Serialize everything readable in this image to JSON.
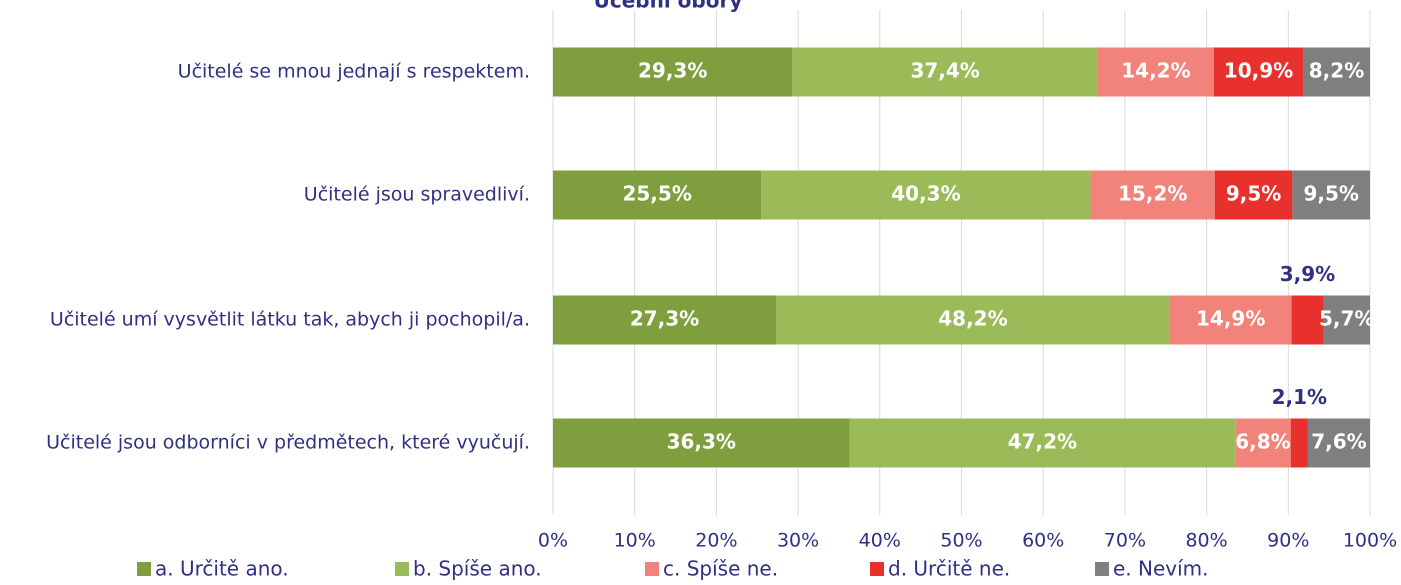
{
  "chart_data": {
    "type": "stacked-bar-horizontal",
    "title": "Učební obory",
    "categories": [
      "Učitelé se mnou jednají s respektem.",
      "Učitelé jsou spravedliví.",
      "Učitelé umí vysvětlit látku tak, abych ji pochopil/a.",
      "Učitelé jsou odborníci v předmětech, které vyučují."
    ],
    "series": [
      {
        "name": "a. Určitě ano.",
        "color": "#7f9f3e",
        "values": [
          29.3,
          25.5,
          27.3,
          36.3
        ],
        "value_labels": [
          "29,3%",
          "25,5%",
          "27,3%",
          "36,3%"
        ]
      },
      {
        "name": "b. Spíše ano.",
        "color": "#9bbb59",
        "values": [
          37.4,
          40.3,
          48.2,
          47.2
        ],
        "value_labels": [
          "37,4%",
          "40,3%",
          "48,2%",
          "47,2%"
        ]
      },
      {
        "name": "c. Spíše ne.",
        "color": "#f1837a",
        "values": [
          14.2,
          15.2,
          14.9,
          6.8
        ],
        "value_labels": [
          "14,2%",
          "15,2%",
          "14,9%",
          "6,8%"
        ]
      },
      {
        "name": "d. Určitě ne.",
        "color": "#e8312d",
        "values": [
          10.9,
          9.5,
          3.9,
          2.1
        ],
        "value_labels": [
          "10,9%",
          "9,5%",
          "3,9%",
          "2,1%"
        ]
      },
      {
        "name": "e. Nevím.",
        "color": "#7f7f7f",
        "values": [
          8.2,
          9.5,
          5.7,
          7.6
        ],
        "value_labels": [
          "8,2%",
          "9,5%",
          "5,7%",
          "7,6%"
        ]
      }
    ],
    "xlim": [
      0,
      100
    ],
    "xticks": [
      {
        "value": 0,
        "label": "0%"
      },
      {
        "value": 10,
        "label": "10%"
      },
      {
        "value": 20,
        "label": "20%"
      },
      {
        "value": 30,
        "label": "30%"
      },
      {
        "value": 40,
        "label": "40%"
      },
      {
        "value": 50,
        "label": "50%"
      },
      {
        "value": 60,
        "label": "60%"
      },
      {
        "value": 70,
        "label": "70%"
      },
      {
        "value": 80,
        "label": "80%"
      },
      {
        "value": 90,
        "label": "90%"
      },
      {
        "value": 100,
        "label": "100%"
      }
    ],
    "grid": true,
    "legend": "bottom"
  }
}
